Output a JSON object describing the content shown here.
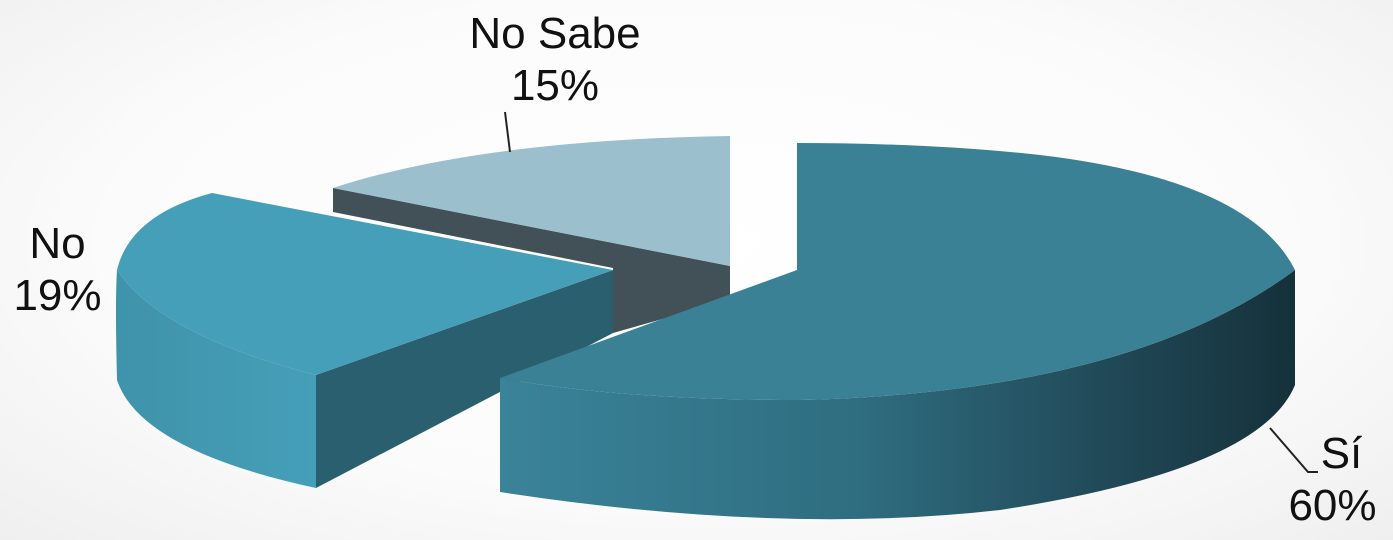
{
  "chart_data": {
    "type": "pie",
    "title": "",
    "slices": [
      {
        "label": "Sí",
        "value": 60,
        "value_label": "60%",
        "color": "#3a8196"
      },
      {
        "label": "No",
        "value": 19,
        "value_label": "19%",
        "color": "#469fb9"
      },
      {
        "label": "No Sabe",
        "value": 15,
        "value_label": "15%",
        "color": "#9bbfcc"
      },
      {
        "label": "",
        "value": 6,
        "value_label": "",
        "color": "#425058"
      }
    ],
    "style": "3d-exploded",
    "legend": "none"
  }
}
